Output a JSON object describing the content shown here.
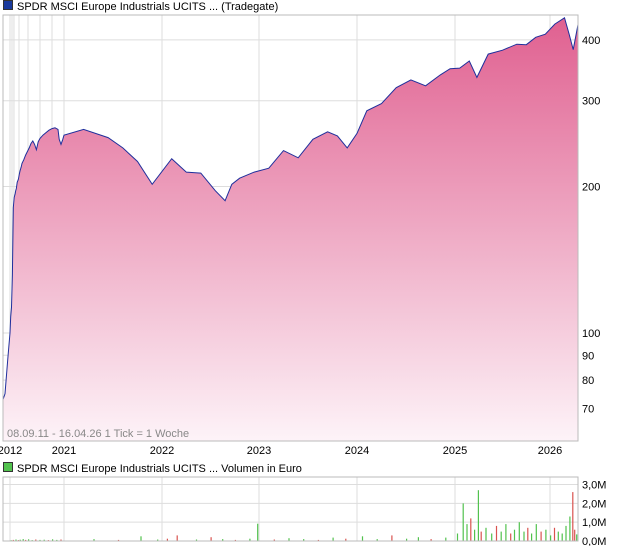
{
  "colors": {
    "price_line": "#1f2f9c",
    "area_top": "#e06090",
    "area_bottom": "#fdf3f8",
    "legend_price": "#1a3a9c",
    "legend_volume": "#52c24e",
    "volume_up": "#52c24e",
    "volume_down": "#d9534f",
    "grid": "#dddddd",
    "frame": "#bbbbbb",
    "footnote": "#888888"
  },
  "legend": {
    "price": "SPDR MSCI Europe Industrials UCITS ... (Tradegate)",
    "volume": "SPDR MSCI Europe Industrials UCITS ... Volumen in Euro"
  },
  "footnote": "08.09.11 - 16.04.26   1 Tick = 1 Woche",
  "chart_data": [
    {
      "type": "area",
      "scale": "log",
      "ylim": [
        60,
        450
      ],
      "xlim": [
        2011.69,
        2026.29
      ],
      "yticks": [
        {
          "value": 400,
          "label": "400"
        },
        {
          "value": 300,
          "label": "300"
        },
        {
          "value": 200,
          "label": "200"
        },
        {
          "value": 100,
          "label": "100"
        },
        {
          "value": 90,
          "label": "90"
        },
        {
          "value": 80,
          "label": "80"
        },
        {
          "value": 70,
          "label": "70"
        }
      ],
      "xticks": [
        {
          "value": 2012.0,
          "label": "2012"
        },
        {
          "value": 2021.0,
          "label": "2021"
        },
        {
          "value": 2022.0,
          "label": "2022"
        },
        {
          "value": 2023.0,
          "label": "2023"
        },
        {
          "value": 2024.0,
          "label": "2024"
        },
        {
          "value": 2025.0,
          "label": "2025"
        },
        {
          "value": 2026.0,
          "label": "2026"
        }
      ],
      "series": [
        {
          "x": [
            2011.69,
            2011.78,
            2011.9,
            2012.0,
            2012.12,
            2012.25,
            2012.4,
            2012.55,
            2012.7,
            2012.85,
            2012.95,
            2013.05,
            2013.2,
            2013.4,
            2013.55,
            2013.7,
            2013.85,
            2014.0,
            2014.3,
            2014.6,
            2014.9,
            2015.2,
            2015.5,
            2015.8,
            2016.1,
            2016.4,
            2016.7,
            2017.0,
            2017.5,
            2018.0,
            2018.5,
            2019.0,
            2019.5,
            2020.0,
            2020.2,
            2020.5,
            2020.8,
            2021.0,
            2021.2,
            2021.45,
            2021.6,
            2021.75,
            2021.9,
            2022.1,
            2022.25,
            2022.4,
            2022.55,
            2022.65,
            2022.72,
            2022.8,
            2022.95,
            2023.1,
            2023.25,
            2023.4,
            2023.55,
            2023.7,
            2023.8,
            2023.9,
            2024.0,
            2024.1,
            2024.25,
            2024.4,
            2024.55,
            2024.7,
            2024.85,
            2024.95,
            2025.05,
            2025.15,
            2025.23,
            2025.35,
            2025.5,
            2025.65,
            2025.75,
            2025.85,
            2025.95,
            2026.05,
            2026.15,
            2026.2,
            2026.24,
            2026.29
          ],
          "values": [
            73,
            75,
            88,
            100,
            108,
            113,
            132,
            181,
            190,
            193,
            196,
            198,
            204,
            207,
            212,
            216,
            219,
            223,
            227,
            232,
            236,
            240,
            245,
            248,
            244,
            238,
            247,
            251,
            255,
            258,
            261,
            263,
            264,
            262,
            250,
            244,
            250,
            255,
            262,
            252,
            240,
            225,
            202,
            228,
            214,
            213,
            196,
            187,
            202,
            208,
            214,
            218,
            237,
            229,
            250,
            259,
            254,
            240,
            257,
            286,
            296,
            319,
            331,
            322,
            339,
            349,
            350,
            362,
            335,
            374,
            381,
            392,
            391,
            405,
            411,
            431,
            444,
            410,
            382,
            430
          ]
        }
      ]
    },
    {
      "type": "bar",
      "ylim": [
        0,
        3.4
      ],
      "yticks": [
        {
          "value": 3.0,
          "label": "3,0M"
        },
        {
          "value": 2.0,
          "label": "2,0M"
        },
        {
          "value": 1.0,
          "label": "1,0M"
        },
        {
          "value": 0.0,
          "label": "0,0M"
        }
      ],
      "bars": [
        {
          "x": 2012.1,
          "v": 0.04,
          "up": true
        },
        {
          "x": 2012.45,
          "v": 0.06,
          "up": false
        },
        {
          "x": 2012.9,
          "v": 0.08,
          "up": true
        },
        {
          "x": 2013.3,
          "v": 0.05,
          "up": false
        },
        {
          "x": 2013.6,
          "v": 0.07,
          "up": true
        },
        {
          "x": 2014.1,
          "v": 0.1,
          "up": true
        },
        {
          "x": 2014.5,
          "v": 0.06,
          "up": false
        },
        {
          "x": 2015.0,
          "v": 0.09,
          "up": true
        },
        {
          "x": 2015.6,
          "v": 0.05,
          "up": true
        },
        {
          "x": 2016.2,
          "v": 0.08,
          "up": false
        },
        {
          "x": 2016.9,
          "v": 0.06,
          "up": true
        },
        {
          "x": 2017.6,
          "v": 0.07,
          "up": true
        },
        {
          "x": 2018.3,
          "v": 0.05,
          "up": false
        },
        {
          "x": 2019.0,
          "v": 0.09,
          "up": true
        },
        {
          "x": 2019.7,
          "v": 0.06,
          "up": true
        },
        {
          "x": 2020.4,
          "v": 0.08,
          "up": false
        },
        {
          "x": 2021.3,
          "v": 0.1,
          "up": true
        },
        {
          "x": 2021.55,
          "v": 0.06,
          "up": false
        },
        {
          "x": 2021.78,
          "v": 0.25,
          "up": true
        },
        {
          "x": 2021.95,
          "v": 0.08,
          "up": true
        },
        {
          "x": 2022.05,
          "v": 0.12,
          "up": false
        },
        {
          "x": 2022.15,
          "v": 0.3,
          "up": false
        },
        {
          "x": 2022.35,
          "v": 0.08,
          "up": true
        },
        {
          "x": 2022.5,
          "v": 0.2,
          "up": false
        },
        {
          "x": 2022.62,
          "v": 0.1,
          "up": true
        },
        {
          "x": 2022.75,
          "v": 0.06,
          "up": false
        },
        {
          "x": 2022.9,
          "v": 0.12,
          "up": true
        },
        {
          "x": 2022.98,
          "v": 0.92,
          "up": true
        },
        {
          "x": 2023.15,
          "v": 0.08,
          "up": false
        },
        {
          "x": 2023.3,
          "v": 0.15,
          "up": true
        },
        {
          "x": 2023.45,
          "v": 0.1,
          "up": true
        },
        {
          "x": 2023.6,
          "v": 0.06,
          "up": false
        },
        {
          "x": 2023.75,
          "v": 0.18,
          "up": true
        },
        {
          "x": 2023.88,
          "v": 0.12,
          "up": false
        },
        {
          "x": 2024.05,
          "v": 0.25,
          "up": true
        },
        {
          "x": 2024.2,
          "v": 0.1,
          "up": true
        },
        {
          "x": 2024.35,
          "v": 0.3,
          "up": false
        },
        {
          "x": 2024.5,
          "v": 0.12,
          "up": true
        },
        {
          "x": 2024.62,
          "v": 0.2,
          "up": true
        },
        {
          "x": 2024.75,
          "v": 0.1,
          "up": false
        },
        {
          "x": 2024.9,
          "v": 0.18,
          "up": true
        },
        {
          "x": 2025.02,
          "v": 0.4,
          "up": true
        },
        {
          "x": 2025.08,
          "v": 2.0,
          "up": true
        },
        {
          "x": 2025.12,
          "v": 0.9,
          "up": true
        },
        {
          "x": 2025.16,
          "v": 1.2,
          "up": false
        },
        {
          "x": 2025.2,
          "v": 0.6,
          "up": true
        },
        {
          "x": 2025.24,
          "v": 2.7,
          "up": true
        },
        {
          "x": 2025.27,
          "v": 0.5,
          "up": false
        },
        {
          "x": 2025.32,
          "v": 0.7,
          "up": true
        },
        {
          "x": 2025.38,
          "v": 0.4,
          "up": true
        },
        {
          "x": 2025.43,
          "v": 0.8,
          "up": false
        },
        {
          "x": 2025.48,
          "v": 0.5,
          "up": true
        },
        {
          "x": 2025.53,
          "v": 0.9,
          "up": true
        },
        {
          "x": 2025.58,
          "v": 0.4,
          "up": false
        },
        {
          "x": 2025.62,
          "v": 0.6,
          "up": true
        },
        {
          "x": 2025.67,
          "v": 1.0,
          "up": true
        },
        {
          "x": 2025.72,
          "v": 0.5,
          "up": true
        },
        {
          "x": 2025.76,
          "v": 0.7,
          "up": false
        },
        {
          "x": 2025.8,
          "v": 0.4,
          "up": true
        },
        {
          "x": 2025.85,
          "v": 0.9,
          "up": true
        },
        {
          "x": 2025.9,
          "v": 0.5,
          "up": false
        },
        {
          "x": 2025.95,
          "v": 0.6,
          "up": true
        },
        {
          "x": 2026.0,
          "v": 0.3,
          "up": true
        },
        {
          "x": 2026.04,
          "v": 0.7,
          "up": false
        },
        {
          "x": 2026.08,
          "v": 0.5,
          "up": true
        },
        {
          "x": 2026.12,
          "v": 0.4,
          "up": true
        },
        {
          "x": 2026.16,
          "v": 0.8,
          "up": true
        },
        {
          "x": 2026.2,
          "v": 1.3,
          "up": true
        },
        {
          "x": 2026.23,
          "v": 2.6,
          "up": false
        },
        {
          "x": 2026.25,
          "v": 0.6,
          "up": false
        },
        {
          "x": 2026.27,
          "v": 0.35,
          "up": true
        }
      ]
    }
  ]
}
